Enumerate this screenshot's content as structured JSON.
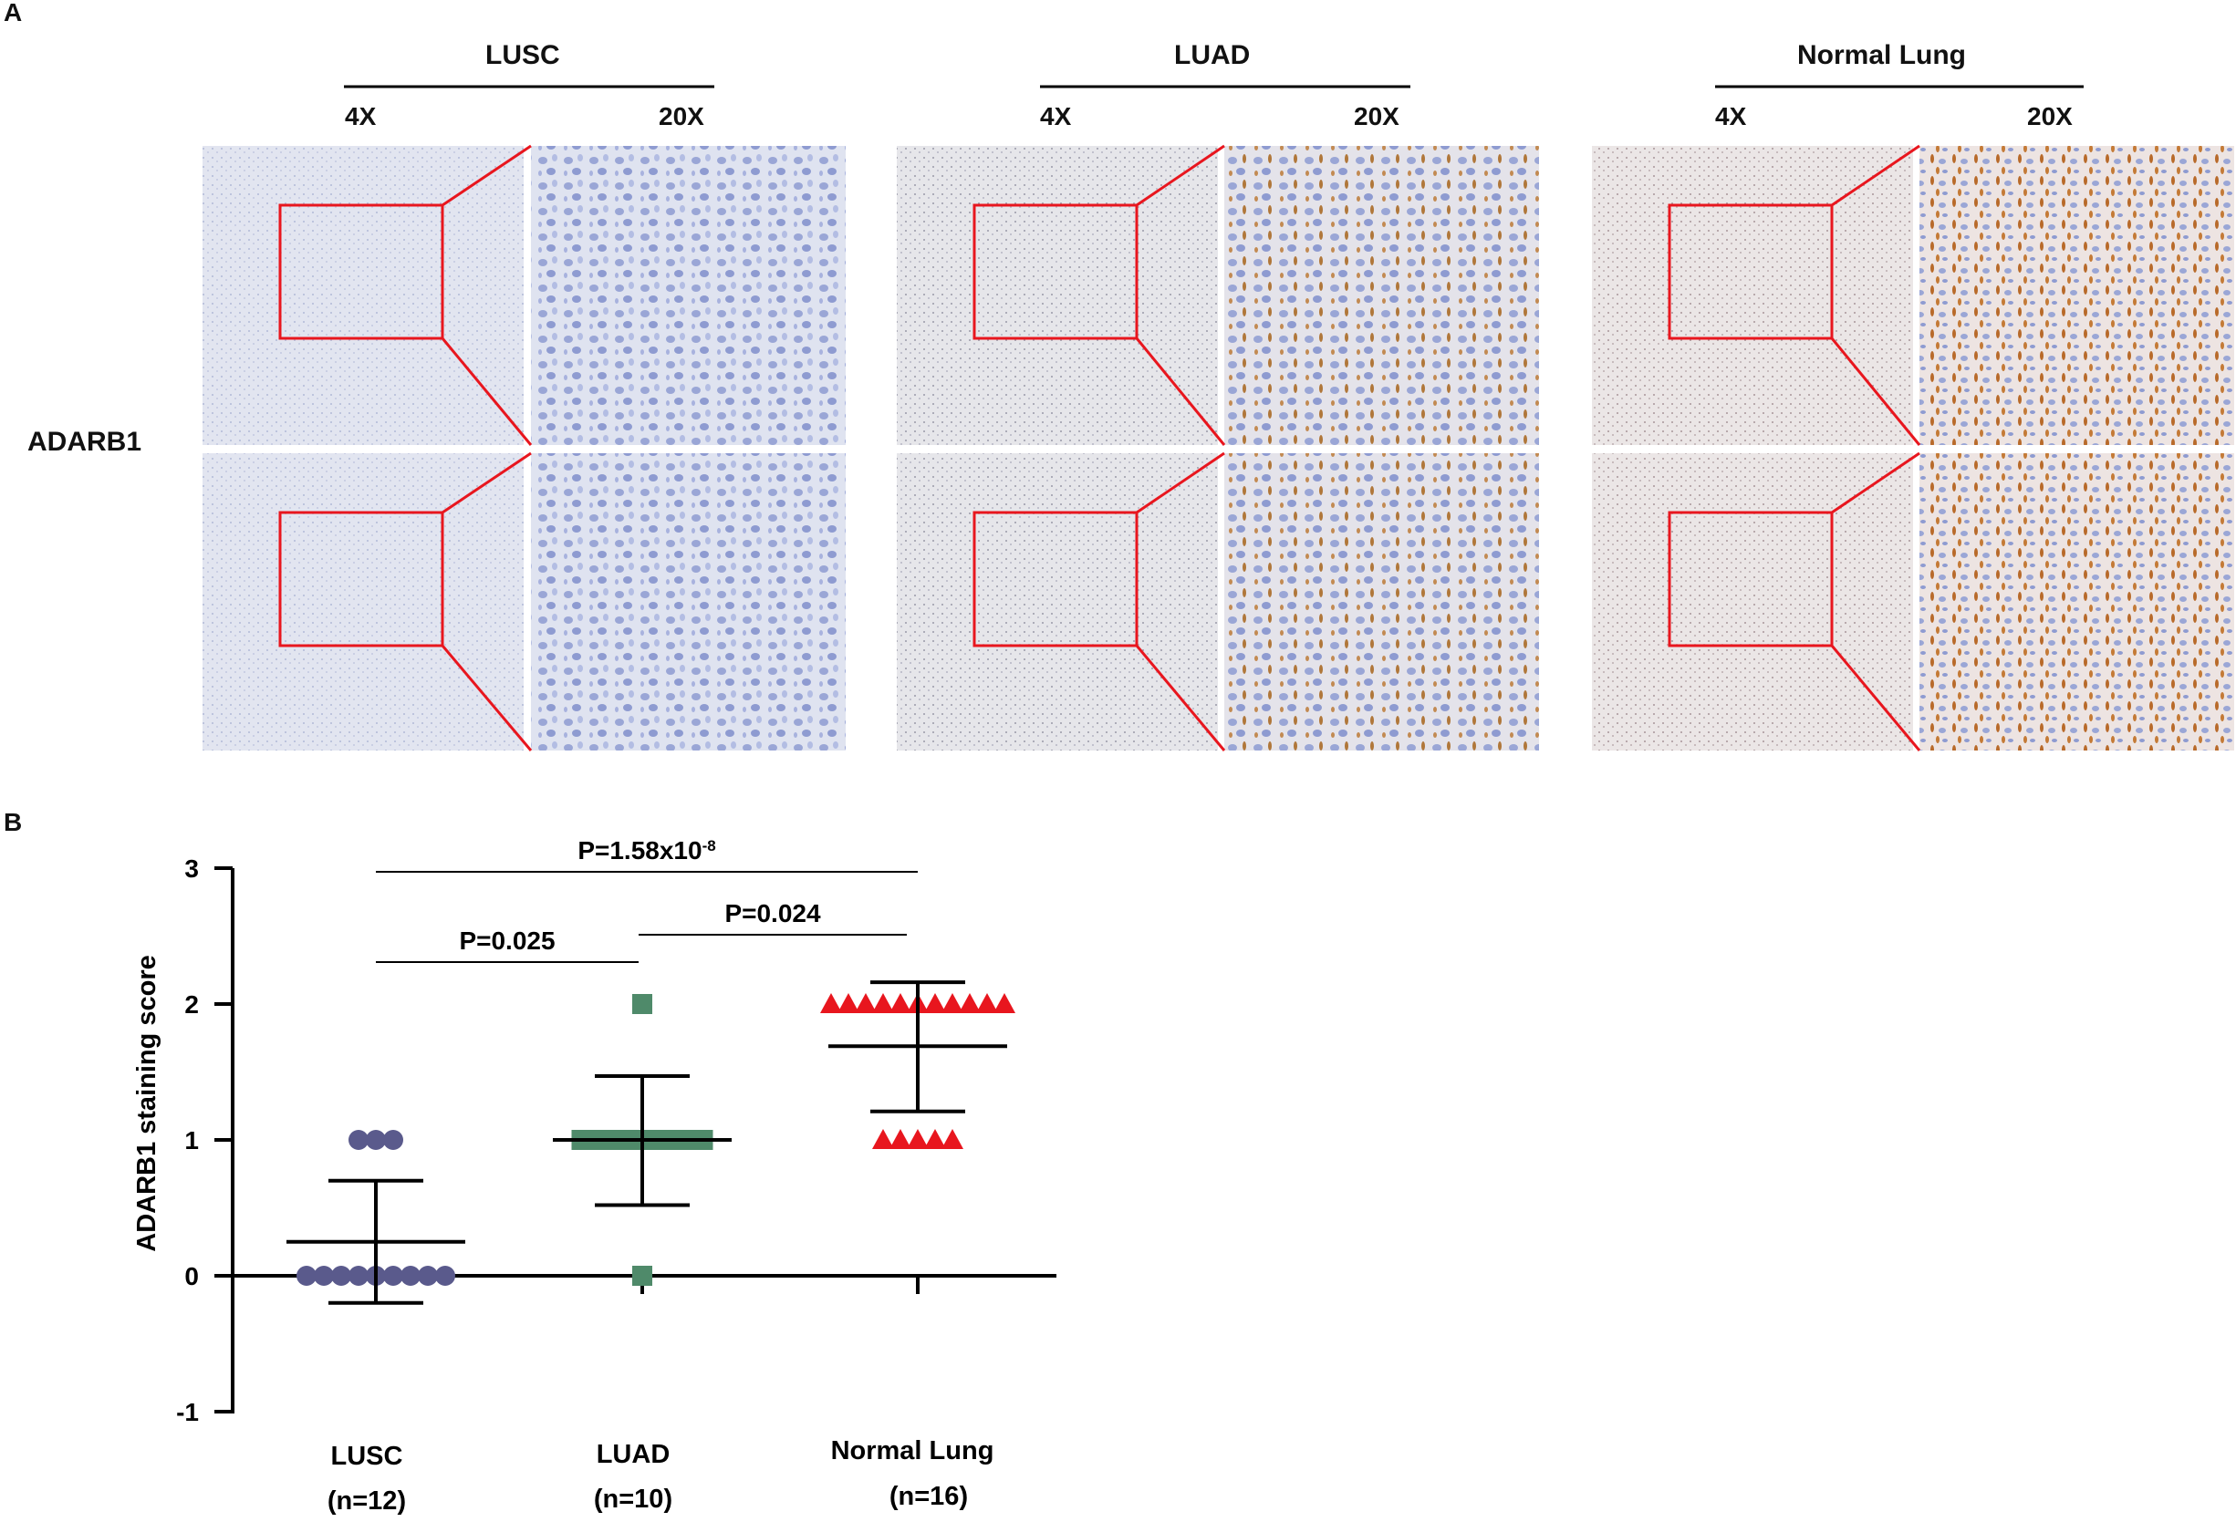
{
  "panel_a": {
    "letter": "A",
    "row_label": "ADARB1",
    "groups": [
      {
        "name": "LUSC",
        "mag_low": "4X",
        "mag_high": "20X"
      },
      {
        "name": "LUAD",
        "mag_low": "4X",
        "mag_high": "20X"
      },
      {
        "name": "Normal Lung",
        "mag_low": "4X",
        "mag_high": "20X"
      }
    ]
  },
  "panel_b": {
    "letter": "B",
    "comparisons": [
      {
        "between": [
          "LUSC",
          "Normal Lung"
        ],
        "base": "P=1.58x10",
        "sup": "-8"
      },
      {
        "between": [
          "LUSC",
          "LUAD"
        ],
        "base": "P=0.025",
        "sup": ""
      },
      {
        "between": [
          "LUAD",
          "Normal Lung"
        ],
        "base": "P=0.024",
        "sup": ""
      }
    ]
  },
  "chart_data": {
    "type": "scatter",
    "ylabel": "ADARB1 staining score",
    "ylim": [
      -1,
      3
    ],
    "yticks": [
      -1,
      0,
      1,
      2,
      3
    ],
    "groups": [
      {
        "name": "LUSC",
        "n_label": "(n=12)",
        "marker": "circle",
        "color": "#5a5a8c",
        "values": [
          0,
          0,
          0,
          0,
          0,
          0,
          0,
          0,
          0,
          1,
          1,
          1
        ],
        "mean": 0.25,
        "sd_low": -0.2,
        "sd_high": 0.7
      },
      {
        "name": "LUAD",
        "n_label": "(n=10)",
        "marker": "square",
        "color": "#4f8a6a",
        "values": [
          0,
          1,
          1,
          1,
          1,
          1,
          1,
          1,
          1,
          2
        ],
        "mean": 1.0,
        "sd_low": 0.52,
        "sd_high": 1.47
      },
      {
        "name": "Normal Lung",
        "n_label": "(n=16)",
        "marker": "triangle",
        "color": "#e8161e",
        "values": [
          1,
          1,
          1,
          1,
          1,
          2,
          2,
          2,
          2,
          2,
          2,
          2,
          2,
          2,
          2,
          2
        ],
        "mean": 1.69,
        "sd_low": 1.21,
        "sd_high": 2.16
      }
    ]
  }
}
